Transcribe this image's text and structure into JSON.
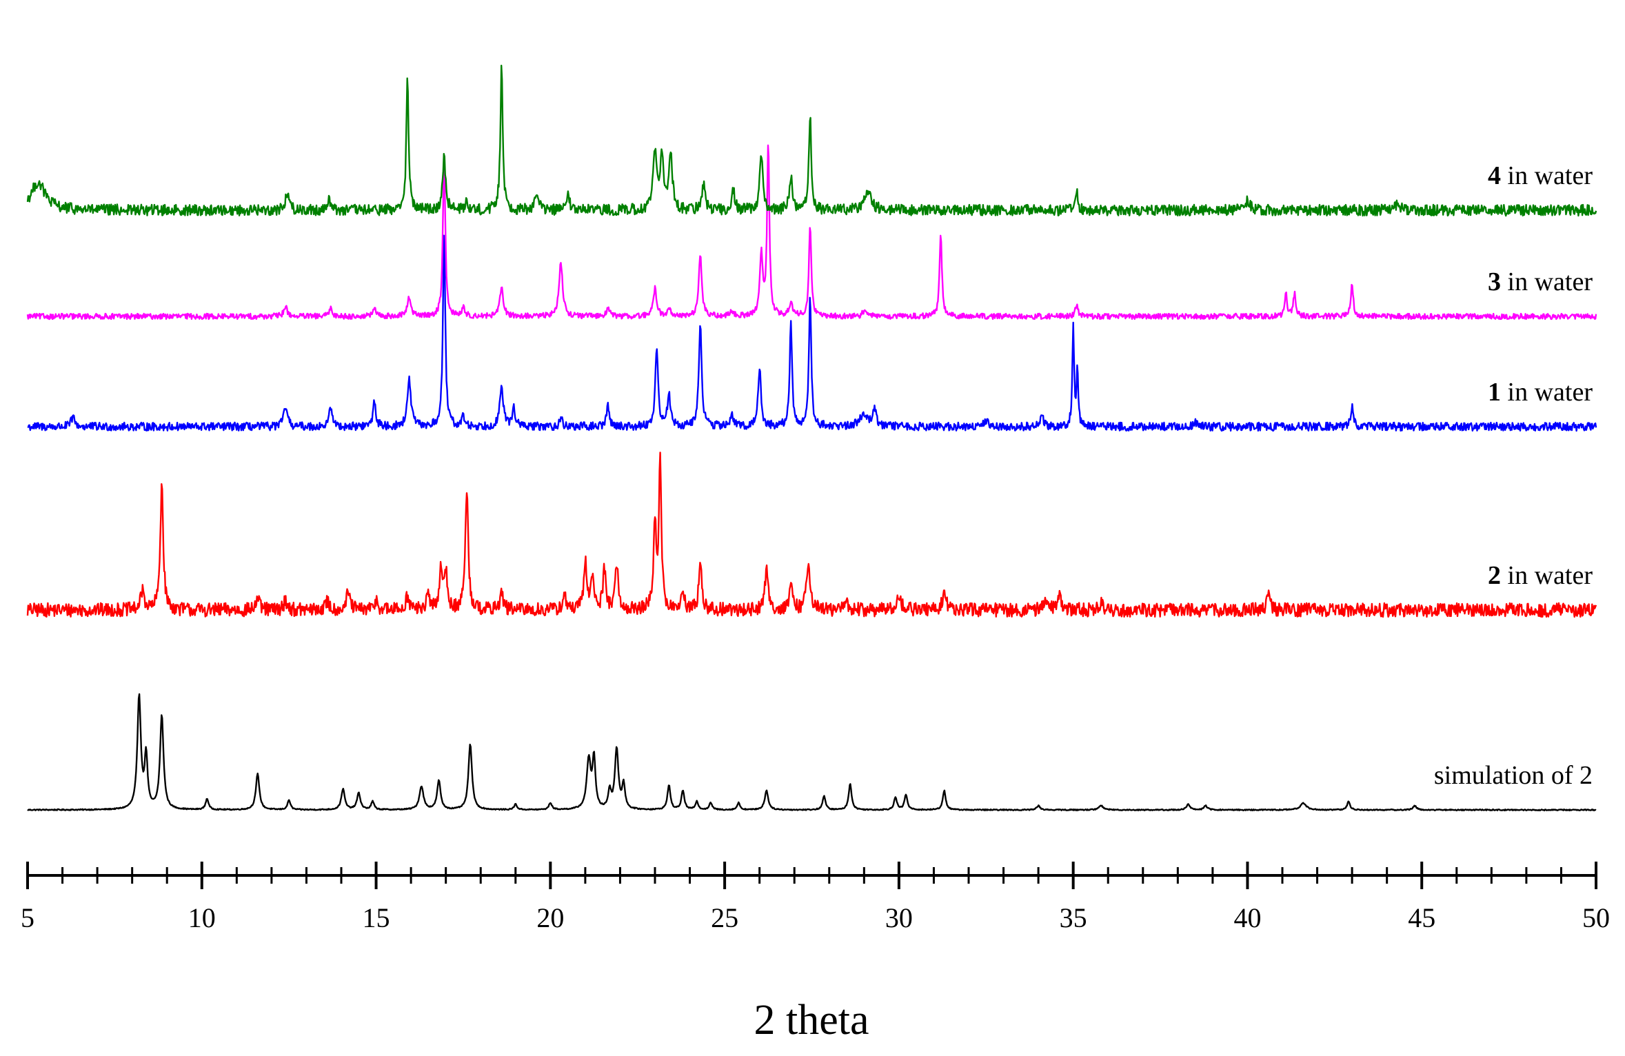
{
  "chart_data": {
    "type": "line",
    "title": "",
    "xlabel": "2 theta",
    "ylabel": "",
    "xlim": [
      5,
      50
    ],
    "x_ticks": [
      5,
      10,
      15,
      20,
      25,
      30,
      35,
      40,
      45,
      50
    ],
    "x_tick_labels": [
      "5",
      "10",
      "15",
      "20",
      "25",
      "30",
      "35",
      "40",
      "45",
      "50"
    ],
    "grid": false,
    "legend": "none",
    "series": [
      {
        "label_number": "",
        "label_text": "simulation of 2",
        "color": "#000000",
        "baseline": 0,
        "noise": 0.004,
        "peaks": [
          [
            8.2,
            0.82,
            0.06
          ],
          [
            8.4,
            0.38,
            0.05
          ],
          [
            8.85,
            0.68,
            0.06
          ],
          [
            10.15,
            0.08,
            0.05
          ],
          [
            11.6,
            0.26,
            0.06
          ],
          [
            12.5,
            0.07,
            0.05
          ],
          [
            14.05,
            0.15,
            0.06
          ],
          [
            14.5,
            0.12,
            0.06
          ],
          [
            14.9,
            0.06,
            0.05
          ],
          [
            16.3,
            0.17,
            0.07
          ],
          [
            16.8,
            0.21,
            0.06
          ],
          [
            17.7,
            0.48,
            0.06
          ],
          [
            19.0,
            0.04,
            0.05
          ],
          [
            20.0,
            0.05,
            0.05
          ],
          [
            21.1,
            0.36,
            0.07
          ],
          [
            21.25,
            0.36,
            0.05
          ],
          [
            21.7,
            0.13,
            0.05
          ],
          [
            21.9,
            0.44,
            0.06
          ],
          [
            22.1,
            0.18,
            0.05
          ],
          [
            23.4,
            0.18,
            0.05
          ],
          [
            23.8,
            0.14,
            0.05
          ],
          [
            24.2,
            0.06,
            0.05
          ],
          [
            24.6,
            0.05,
            0.05
          ],
          [
            25.4,
            0.05,
            0.05
          ],
          [
            26.2,
            0.14,
            0.06
          ],
          [
            27.85,
            0.1,
            0.05
          ],
          [
            28.6,
            0.19,
            0.05
          ],
          [
            29.9,
            0.09,
            0.05
          ],
          [
            30.2,
            0.11,
            0.05
          ],
          [
            31.3,
            0.14,
            0.05
          ],
          [
            34.0,
            0.03,
            0.06
          ],
          [
            35.8,
            0.03,
            0.08
          ],
          [
            38.3,
            0.04,
            0.06
          ],
          [
            38.8,
            0.03,
            0.06
          ],
          [
            41.6,
            0.05,
            0.1
          ],
          [
            42.9,
            0.06,
            0.05
          ],
          [
            44.8,
            0.03,
            0.06
          ]
        ]
      },
      {
        "label_number": "2",
        "label_text": " in water",
        "color": "#ff0000",
        "baseline": 1.45,
        "noise": 0.05,
        "peaks": [
          [
            8.3,
            0.14,
            0.06
          ],
          [
            8.85,
            0.92,
            0.05
          ],
          [
            11.6,
            0.08,
            0.06
          ],
          [
            12.4,
            0.07,
            0.06
          ],
          [
            13.6,
            0.06,
            0.06
          ],
          [
            14.2,
            0.13,
            0.06
          ],
          [
            15.0,
            0.07,
            0.06
          ],
          [
            15.9,
            0.1,
            0.06
          ],
          [
            16.5,
            0.1,
            0.06
          ],
          [
            16.85,
            0.28,
            0.05
          ],
          [
            17.0,
            0.28,
            0.05
          ],
          [
            17.6,
            0.88,
            0.05
          ],
          [
            18.6,
            0.12,
            0.06
          ],
          [
            20.4,
            0.1,
            0.06
          ],
          [
            21.0,
            0.34,
            0.05
          ],
          [
            21.2,
            0.26,
            0.05
          ],
          [
            21.55,
            0.3,
            0.05
          ],
          [
            21.9,
            0.34,
            0.05
          ],
          [
            23.0,
            0.6,
            0.05
          ],
          [
            23.15,
            1.1,
            0.04
          ],
          [
            23.8,
            0.12,
            0.05
          ],
          [
            24.3,
            0.34,
            0.05
          ],
          [
            26.2,
            0.28,
            0.06
          ],
          [
            26.9,
            0.15,
            0.06
          ],
          [
            27.4,
            0.36,
            0.06
          ],
          [
            28.5,
            0.06,
            0.06
          ],
          [
            30.0,
            0.08,
            0.1
          ],
          [
            31.3,
            0.13,
            0.06
          ],
          [
            34.2,
            0.08,
            0.06
          ],
          [
            34.6,
            0.13,
            0.06
          ],
          [
            35.8,
            0.05,
            0.06
          ],
          [
            40.6,
            0.15,
            0.05
          ]
        ]
      },
      {
        "label_number": "1",
        "label_text": " in water",
        "color": "#0000ff",
        "baseline": 2.78,
        "noise": 0.03,
        "peaks": [
          [
            6.3,
            0.07,
            0.06
          ],
          [
            12.4,
            0.15,
            0.06
          ],
          [
            13.7,
            0.15,
            0.05
          ],
          [
            14.95,
            0.18,
            0.05
          ],
          [
            15.95,
            0.34,
            0.06
          ],
          [
            16.95,
            1.4,
            0.04
          ],
          [
            17.5,
            0.07,
            0.05
          ],
          [
            18.6,
            0.28,
            0.06
          ],
          [
            18.95,
            0.14,
            0.05
          ],
          [
            20.3,
            0.06,
            0.05
          ],
          [
            21.65,
            0.15,
            0.05
          ],
          [
            23.05,
            0.55,
            0.05
          ],
          [
            23.4,
            0.24,
            0.05
          ],
          [
            24.3,
            0.72,
            0.05
          ],
          [
            25.2,
            0.08,
            0.06
          ],
          [
            26.0,
            0.42,
            0.05
          ],
          [
            26.9,
            0.75,
            0.04
          ],
          [
            27.45,
            0.94,
            0.04
          ],
          [
            29.0,
            0.09,
            0.15
          ],
          [
            29.3,
            0.14,
            0.05
          ],
          [
            32.5,
            0.05,
            0.06
          ],
          [
            34.1,
            0.08,
            0.05
          ],
          [
            35.0,
            0.72,
            0.03
          ],
          [
            35.12,
            0.4,
            0.03
          ],
          [
            38.5,
            0.03,
            0.06
          ],
          [
            43.0,
            0.14,
            0.05
          ]
        ]
      },
      {
        "label_number": "3",
        "label_text": " in water",
        "color": "#ff00ff",
        "baseline": 3.58,
        "noise": 0.02,
        "peaks": [
          [
            12.4,
            0.07,
            0.06
          ],
          [
            13.7,
            0.06,
            0.05
          ],
          [
            14.95,
            0.06,
            0.05
          ],
          [
            15.95,
            0.14,
            0.06
          ],
          [
            16.95,
            1.18,
            0.04
          ],
          [
            17.5,
            0.06,
            0.05
          ],
          [
            18.6,
            0.2,
            0.06
          ],
          [
            20.3,
            0.4,
            0.06
          ],
          [
            21.65,
            0.07,
            0.05
          ],
          [
            23.0,
            0.2,
            0.06
          ],
          [
            23.4,
            0.06,
            0.05
          ],
          [
            24.3,
            0.46,
            0.05
          ],
          [
            25.2,
            0.04,
            0.05
          ],
          [
            26.05,
            0.45,
            0.05
          ],
          [
            26.25,
            1.22,
            0.04
          ],
          [
            26.9,
            0.1,
            0.06
          ],
          [
            27.45,
            0.66,
            0.04
          ],
          [
            29.0,
            0.04,
            0.06
          ],
          [
            31.2,
            0.6,
            0.04
          ],
          [
            35.1,
            0.08,
            0.05
          ],
          [
            41.1,
            0.17,
            0.04
          ],
          [
            41.35,
            0.17,
            0.04
          ],
          [
            43.0,
            0.24,
            0.04
          ]
        ]
      },
      {
        "label_number": "4",
        "label_text": " in water",
        "color": "#008000",
        "baseline": 4.35,
        "noise": 0.04,
        "peaks": [
          [
            5.3,
            0.2,
            0.25
          ],
          [
            12.45,
            0.13,
            0.06
          ],
          [
            13.65,
            0.09,
            0.05
          ],
          [
            15.9,
            0.94,
            0.04
          ],
          [
            16.95,
            0.4,
            0.05
          ],
          [
            17.6,
            0.07,
            0.05
          ],
          [
            18.6,
            1.06,
            0.04
          ],
          [
            19.6,
            0.14,
            0.06
          ],
          [
            20.5,
            0.1,
            0.06
          ],
          [
            23.0,
            0.42,
            0.06
          ],
          [
            23.2,
            0.36,
            0.06
          ],
          [
            23.45,
            0.4,
            0.06
          ],
          [
            24.4,
            0.2,
            0.05
          ],
          [
            25.25,
            0.14,
            0.05
          ],
          [
            26.05,
            0.42,
            0.05
          ],
          [
            26.9,
            0.24,
            0.05
          ],
          [
            27.45,
            0.7,
            0.04
          ],
          [
            29.1,
            0.14,
            0.12
          ],
          [
            35.1,
            0.15,
            0.04
          ],
          [
            40.0,
            0.07,
            0.1
          ],
          [
            44.3,
            0.05,
            0.08
          ]
        ]
      }
    ]
  }
}
